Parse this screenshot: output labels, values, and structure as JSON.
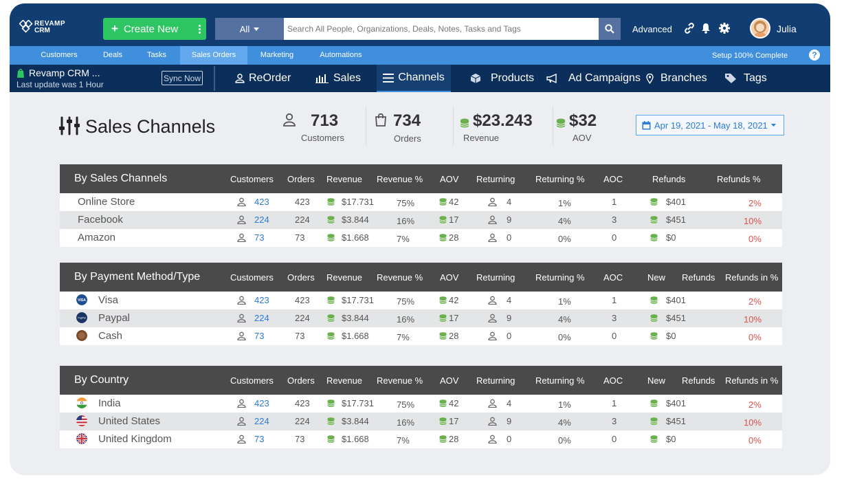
{
  "app": {
    "logo_line1": "REVAMP",
    "logo_line2": "CRM"
  },
  "header": {
    "create_label": "Create New",
    "search_scope": "All",
    "search_placeholder": "Search All People, Organizations, Deals, Notes, Tasks and Tags",
    "advanced_label": "Advanced",
    "user_name": "Julia",
    "icons": [
      "link-icon",
      "bell-icon",
      "gear-icon",
      "search-icon"
    ]
  },
  "nav": {
    "tabs": [
      "Customers",
      "Deals",
      "Tasks",
      "Sales Orders",
      "Marketing",
      "Automations"
    ],
    "active_tab": "Sales Orders",
    "setup_text": "Setup 100% Complete",
    "help": "?"
  },
  "subnav": {
    "store_name": "Revamp CRM ...",
    "store_sub": "Last update was 1 Hour",
    "sync_label": "Sync Now",
    "items": [
      "ReOrder",
      "Sales",
      "Channels",
      "Products",
      "Ad Campaigns",
      "Branches",
      "Tags"
    ],
    "active_item": "Channels"
  },
  "page": {
    "title": "Sales Channels",
    "stats": [
      {
        "value": "713",
        "label": "Customers"
      },
      {
        "value": "734",
        "label": "Orders"
      },
      {
        "value": "$23.243",
        "label": "Revenue"
      },
      {
        "value": "$32",
        "label": "AOV"
      }
    ],
    "date_range": "Apr 19, 2021 - May 18, 2021"
  },
  "colors": {
    "accent_blue": "#2b7bd8",
    "green": "#2ec563",
    "red": "#d9534f",
    "navy": "#113d73"
  },
  "tables": [
    {
      "title": "By Sales Channels",
      "columns": [
        "Customers",
        "Orders",
        "Revenue",
        "Revenue %",
        "AOV",
        "Returning",
        "Returning %",
        "AOC",
        "Refunds",
        "Refunds  %"
      ],
      "rows": [
        {
          "name": "Online Store",
          "customers": "423",
          "orders": "423",
          "revenue": "$17.731",
          "revenue_pct": "75%",
          "aov": "42",
          "returning": "4",
          "returning_pct": "1%",
          "aoc": "1",
          "refunds": "$401",
          "refunds_pct": "2%"
        },
        {
          "name": "Facebook",
          "customers": "224",
          "orders": "224",
          "revenue": "$3.844",
          "revenue_pct": "16%",
          "aov": "17",
          "returning": "9",
          "returning_pct": "4%",
          "aoc": "3",
          "refunds": "$451",
          "refunds_pct": "10%"
        },
        {
          "name": "Amazon",
          "customers": "73",
          "orders": "73",
          "revenue": "$1.668",
          "revenue_pct": "7%",
          "aov": "28",
          "returning": "0",
          "returning_pct": "0%",
          "aoc": "0",
          "refunds": "$0",
          "refunds_pct": "0%"
        }
      ]
    },
    {
      "title": "By Payment Method/Type",
      "columns": [
        "Customers",
        "Orders",
        "Revenue",
        "Revenue %",
        "AOV",
        "Returning",
        "Returning %",
        "AOC",
        "New",
        "Refunds",
        "Refunds in %"
      ],
      "rows": [
        {
          "name": "Visa",
          "badge": "VISA",
          "icon": "visa-icon",
          "customers": "423",
          "orders": "423",
          "revenue": "$17.731",
          "revenue_pct": "75%",
          "aov": "42",
          "returning": "4",
          "returning_pct": "1%",
          "aoc": "1",
          "refunds": "$401",
          "refunds_pct": "2%"
        },
        {
          "name": "Paypal",
          "badge": "PayPal",
          "icon": "paypal-icon",
          "customers": "224",
          "orders": "224",
          "revenue": "$3.844",
          "revenue_pct": "16%",
          "aov": "17",
          "returning": "9",
          "returning_pct": "4%",
          "aoc": "3",
          "refunds": "$451",
          "refunds_pct": "10%"
        },
        {
          "name": "Cash",
          "badge": "",
          "icon": "cash-icon",
          "customers": "73",
          "orders": "73",
          "revenue": "$1.668",
          "revenue_pct": "7%",
          "aov": "28",
          "returning": "0",
          "returning_pct": "0%",
          "aoc": "0",
          "refunds": "$0",
          "refunds_pct": "0%"
        }
      ]
    },
    {
      "title": "By Country",
      "columns": [
        "Customers",
        "Orders",
        "Revenue",
        "Revenue %",
        "AOV",
        "Returning",
        "Returning %",
        "AOC",
        "New",
        "Refunds",
        "Refunds in %"
      ],
      "rows": [
        {
          "name": "India",
          "icon": "india-flag-icon",
          "customers": "423",
          "orders": "423",
          "revenue": "$17.731",
          "revenue_pct": "75%",
          "aov": "42",
          "returning": "4",
          "returning_pct": "1%",
          "aoc": "1",
          "refunds": "$401",
          "refunds_pct": "2%"
        },
        {
          "name": "United States",
          "icon": "us-flag-icon",
          "customers": "224",
          "orders": "224",
          "revenue": "$3.844",
          "revenue_pct": "16%",
          "aov": "17",
          "returning": "9",
          "returning_pct": "4%",
          "aoc": "3",
          "refunds": "$451",
          "refunds_pct": "10%"
        },
        {
          "name": "United Kingdom",
          "icon": "uk-flag-icon",
          "customers": "73",
          "orders": "73",
          "revenue": "$1.668",
          "revenue_pct": "7%",
          "aov": "28",
          "returning": "0",
          "returning_pct": "0%",
          "aoc": "0",
          "refunds": "$0",
          "refunds_pct": "0%"
        }
      ]
    }
  ]
}
